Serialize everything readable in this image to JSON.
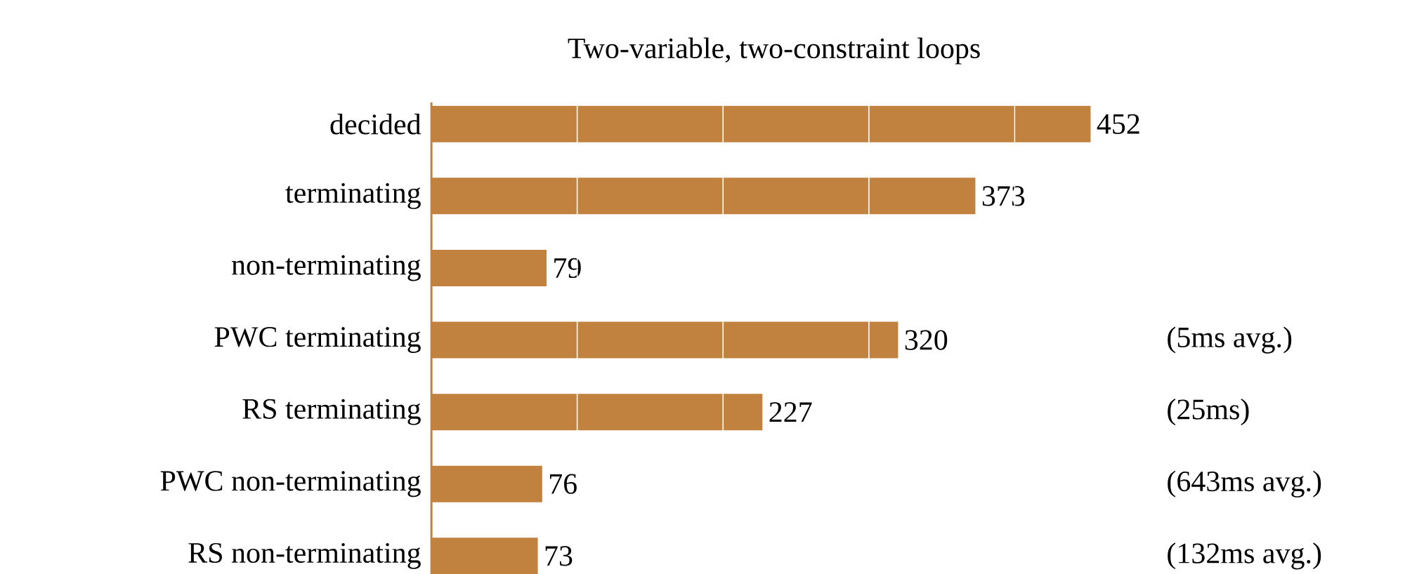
{
  "chart_data": {
    "type": "bar",
    "orientation": "horizontal",
    "title": "Two-variable, two-constraint loops",
    "categories": [
      "decided",
      "terminating",
      "non-terminating",
      "PWC terminating",
      "RS terminating",
      "PWC non-terminating",
      "RS non-terminating"
    ],
    "values": [
      452,
      373,
      79,
      320,
      227,
      76,
      73
    ],
    "color": "#c18240",
    "data_labels": true,
    "xticks": [
      {
        "value": 100,
        "label": null
      },
      {
        "value": 200,
        "label": null
      },
      {
        "value": 300,
        "label": null
      },
      {
        "value": 400,
        "label": null
      }
    ],
    "grid": "x",
    "tick_labels": "y",
    "annotations": [
      "(5ms avg.)",
      "(25ms)",
      "(643ms avg.)",
      "(132ms avg.)"
    ]
  }
}
